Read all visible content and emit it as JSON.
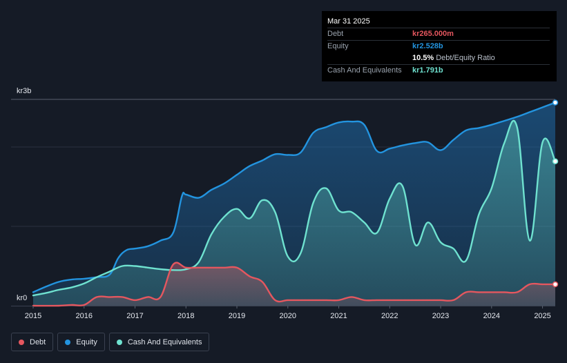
{
  "colors": {
    "background": "#151b26",
    "debt": "#e5575f",
    "equity": "#2394df",
    "cash": "#6fe2d0",
    "grid": "#2b3240"
  },
  "tooltip": {
    "date": "Mar 31 2025",
    "debt_label": "Debt",
    "debt_value": "kr265.000m",
    "equity_label": "Equity",
    "equity_value": "kr2.528b",
    "ratio_value": "10.5%",
    "ratio_label": "Debt/Equity Ratio",
    "cash_label": "Cash And Equivalents",
    "cash_value": "kr1.791b"
  },
  "legend": {
    "debt": "Debt",
    "equity": "Equity",
    "cash": "Cash And Equivalents"
  },
  "chart_data": {
    "type": "area",
    "title": "",
    "xlabel": "",
    "ylabel": "",
    "ylim": [
      0,
      2.6
    ],
    "y_unit": "kr billions",
    "y_ticks": [
      {
        "value": 2.6,
        "label": "kr3b"
      },
      {
        "value": 0,
        "label": "kr0"
      }
    ],
    "x_ticks": [
      "2015",
      "2016",
      "2017",
      "2018",
      "2019",
      "2020",
      "2021",
      "2022",
      "2023",
      "2024",
      "2025"
    ],
    "x_range": [
      2015.0,
      2025.25
    ],
    "series": [
      {
        "name": "Equity",
        "color": "#2394df",
        "points": [
          [
            2015.0,
            0.17
          ],
          [
            2015.25,
            0.24
          ],
          [
            2015.5,
            0.3
          ],
          [
            2015.75,
            0.33
          ],
          [
            2016.0,
            0.34
          ],
          [
            2016.25,
            0.36
          ],
          [
            2016.5,
            0.39
          ],
          [
            2016.67,
            0.6
          ],
          [
            2016.83,
            0.7
          ],
          [
            2017.0,
            0.72
          ],
          [
            2017.25,
            0.75
          ],
          [
            2017.5,
            0.82
          ],
          [
            2017.75,
            0.92
          ],
          [
            2017.92,
            1.38
          ],
          [
            2018.0,
            1.4
          ],
          [
            2018.25,
            1.36
          ],
          [
            2018.5,
            1.46
          ],
          [
            2018.75,
            1.54
          ],
          [
            2019.0,
            1.65
          ],
          [
            2019.25,
            1.76
          ],
          [
            2019.5,
            1.83
          ],
          [
            2019.75,
            1.91
          ],
          [
            2020.0,
            1.9
          ],
          [
            2020.25,
            1.93
          ],
          [
            2020.5,
            2.18
          ],
          [
            2020.75,
            2.25
          ],
          [
            2021.0,
            2.31
          ],
          [
            2021.25,
            2.32
          ],
          [
            2021.5,
            2.28
          ],
          [
            2021.75,
            1.95
          ],
          [
            2022.0,
            1.98
          ],
          [
            2022.25,
            2.02
          ],
          [
            2022.5,
            2.05
          ],
          [
            2022.75,
            2.06
          ],
          [
            2023.0,
            1.96
          ],
          [
            2023.25,
            2.09
          ],
          [
            2023.5,
            2.21
          ],
          [
            2023.75,
            2.24
          ],
          [
            2024.0,
            2.28
          ],
          [
            2024.25,
            2.33
          ],
          [
            2024.5,
            2.38
          ],
          [
            2024.75,
            2.44
          ],
          [
            2025.0,
            2.5
          ],
          [
            2025.25,
            2.56
          ]
        ]
      },
      {
        "name": "Cash And Equivalents",
        "color": "#6fe2d0",
        "points": [
          [
            2015.0,
            0.13
          ],
          [
            2015.25,
            0.16
          ],
          [
            2015.5,
            0.2
          ],
          [
            2015.75,
            0.23
          ],
          [
            2016.0,
            0.28
          ],
          [
            2016.25,
            0.36
          ],
          [
            2016.5,
            0.43
          ],
          [
            2016.75,
            0.5
          ],
          [
            2017.0,
            0.5
          ],
          [
            2017.25,
            0.48
          ],
          [
            2017.5,
            0.46
          ],
          [
            2017.75,
            0.45
          ],
          [
            2018.0,
            0.46
          ],
          [
            2018.25,
            0.55
          ],
          [
            2018.5,
            0.9
          ],
          [
            2018.75,
            1.12
          ],
          [
            2019.0,
            1.22
          ],
          [
            2019.25,
            1.1
          ],
          [
            2019.5,
            1.33
          ],
          [
            2019.75,
            1.18
          ],
          [
            2020.0,
            0.62
          ],
          [
            2020.25,
            0.66
          ],
          [
            2020.5,
            1.3
          ],
          [
            2020.75,
            1.48
          ],
          [
            2021.0,
            1.2
          ],
          [
            2021.25,
            1.18
          ],
          [
            2021.5,
            1.05
          ],
          [
            2021.75,
            0.92
          ],
          [
            2022.0,
            1.35
          ],
          [
            2022.25,
            1.51
          ],
          [
            2022.5,
            0.77
          ],
          [
            2022.75,
            1.05
          ],
          [
            2023.0,
            0.8
          ],
          [
            2023.25,
            0.72
          ],
          [
            2023.5,
            0.57
          ],
          [
            2023.75,
            1.15
          ],
          [
            2024.0,
            1.48
          ],
          [
            2024.25,
            2.05
          ],
          [
            2024.5,
            2.25
          ],
          [
            2024.75,
            0.82
          ],
          [
            2025.0,
            2.06
          ],
          [
            2025.25,
            1.82
          ]
        ]
      },
      {
        "name": "Debt",
        "color": "#e5575f",
        "points": [
          [
            2015.0,
            0.0
          ],
          [
            2015.5,
            0.0
          ],
          [
            2015.75,
            0.01
          ],
          [
            2016.0,
            0.01
          ],
          [
            2016.25,
            0.11
          ],
          [
            2016.5,
            0.11
          ],
          [
            2016.75,
            0.11
          ],
          [
            2017.0,
            0.07
          ],
          [
            2017.25,
            0.11
          ],
          [
            2017.5,
            0.11
          ],
          [
            2017.75,
            0.52
          ],
          [
            2018.0,
            0.48
          ],
          [
            2018.25,
            0.48
          ],
          [
            2018.5,
            0.48
          ],
          [
            2018.75,
            0.48
          ],
          [
            2019.0,
            0.48
          ],
          [
            2019.25,
            0.37
          ],
          [
            2019.5,
            0.3
          ],
          [
            2019.75,
            0.07
          ],
          [
            2020.0,
            0.07
          ],
          [
            2020.25,
            0.07
          ],
          [
            2020.5,
            0.07
          ],
          [
            2020.75,
            0.07
          ],
          [
            2021.0,
            0.07
          ],
          [
            2021.25,
            0.11
          ],
          [
            2021.5,
            0.07
          ],
          [
            2021.75,
            0.07
          ],
          [
            2022.0,
            0.07
          ],
          [
            2022.25,
            0.07
          ],
          [
            2022.5,
            0.07
          ],
          [
            2022.75,
            0.07
          ],
          [
            2023.0,
            0.07
          ],
          [
            2023.25,
            0.07
          ],
          [
            2023.5,
            0.17
          ],
          [
            2023.75,
            0.17
          ],
          [
            2024.0,
            0.17
          ],
          [
            2024.25,
            0.17
          ],
          [
            2024.5,
            0.17
          ],
          [
            2024.75,
            0.27
          ],
          [
            2025.0,
            0.27
          ],
          [
            2025.25,
            0.27
          ]
        ]
      }
    ]
  }
}
